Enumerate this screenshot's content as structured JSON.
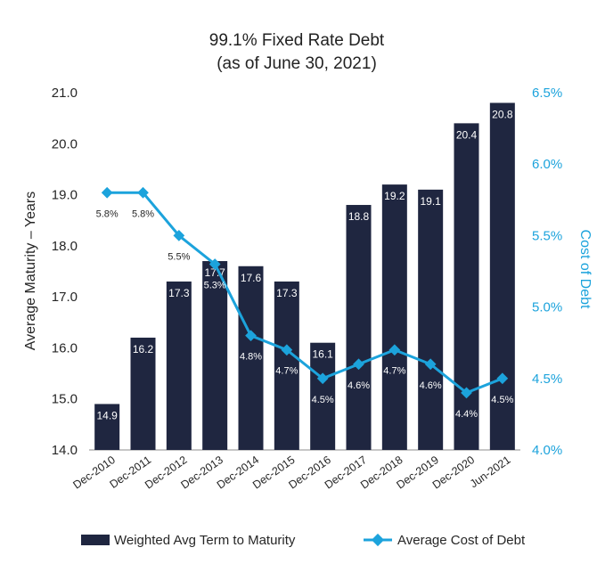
{
  "colors": {
    "bar": "#1F2640",
    "line": "#1CA3DC",
    "axis_right": "#1CA3DC"
  },
  "chart_data": {
    "type": "bar+line",
    "title": "99.1% Fixed Rate Debt",
    "subtitle": "(as of June 30, 2021)",
    "categories": [
      "Dec-2010",
      "Dec-2011",
      "Dec-2012",
      "Dec-2013",
      "Dec-2014",
      "Dec-2015",
      "Dec-2016",
      "Dec-2017",
      "Dec-2018",
      "Dec-2019",
      "Dec-2020",
      "Jun-2021"
    ],
    "series": [
      {
        "name": "Weighted Avg Term to Maturity",
        "type": "bar",
        "axis": "left",
        "values": [
          14.9,
          16.2,
          17.3,
          17.7,
          17.6,
          17.3,
          16.1,
          18.8,
          19.2,
          19.1,
          20.4,
          20.8
        ],
        "labels": [
          "14.9",
          "16.2",
          "17.3",
          "17.7",
          "17.6",
          "17.3",
          "16.1",
          "18.8",
          "19.2",
          "19.1",
          "20.4",
          "20.8"
        ]
      },
      {
        "name": "Average Cost of Debt",
        "type": "line",
        "axis": "right",
        "values": [
          5.8,
          5.8,
          5.5,
          5.3,
          4.8,
          4.7,
          4.5,
          4.6,
          4.7,
          4.6,
          4.4,
          4.5
        ],
        "labels": [
          "5.8%",
          "5.8%",
          "5.5%",
          "5.3%",
          "4.8%",
          "4.7%",
          "4.5%",
          "4.6%",
          "4.7%",
          "4.6%",
          "4.4%",
          "4.5%"
        ]
      }
    ],
    "ylabel": "Average Maturity – Years",
    "ylim": [
      14.0,
      21.0
    ],
    "yticks": [
      "14.0",
      "15.0",
      "16.0",
      "17.0",
      "18.0",
      "19.0",
      "20.0",
      "21.0"
    ],
    "y2label": "Cost of Debt",
    "y2lim": [
      4.0,
      6.5
    ],
    "y2ticks": [
      "4.0%",
      "4.5%",
      "5.0%",
      "5.5%",
      "6.0%",
      "6.5%"
    ],
    "grid": false,
    "legend_position": "bottom"
  }
}
